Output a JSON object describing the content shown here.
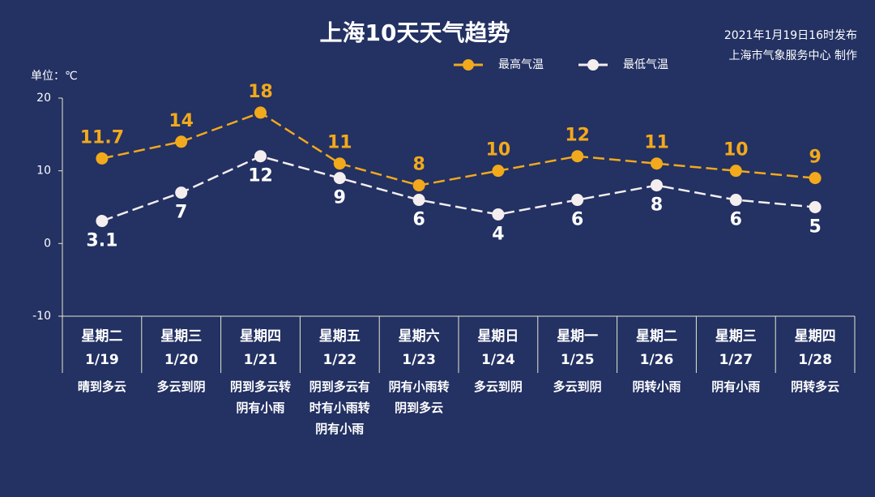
{
  "chart_data": {
    "type": "line",
    "title": "上海10天天气趋势",
    "subtitle": [
      "2021年1月19日16时发布",
      "上海市气象服务中心 制作"
    ],
    "y_label": "单位：℃",
    "categories": [
      "星期二",
      "星期三",
      "星期四",
      "星期五",
      "星期六",
      "星期日",
      "星期一",
      "星期二",
      "星期三",
      "星期四"
    ],
    "dates": [
      "1/19",
      "1/20",
      "1/21",
      "1/22",
      "1/23",
      "1/24",
      "1/25",
      "1/26",
      "1/27",
      "1/28"
    ],
    "weather": [
      "晴到多云",
      "多云到阴",
      "阴到多云转阴有小雨",
      "阴到多云有时有小雨转阴有小雨",
      "阴有小雨转阴到多云",
      "多云到阴",
      "多云到阴",
      "阴转小雨",
      "阴有小雨",
      "阴转多云"
    ],
    "series": [
      {
        "name": "最高气温",
        "color": "#f2a91c",
        "values": [
          11.7,
          14,
          18,
          11,
          8,
          10,
          12,
          11,
          10,
          9
        ]
      },
      {
        "name": "最低气温",
        "color": "#f4eeee",
        "values": [
          3.1,
          7,
          12,
          9,
          6,
          4,
          6,
          8,
          6,
          5
        ]
      }
    ],
    "ylim": [
      -10,
      20
    ],
    "yticks": [
      -10,
      0,
      10,
      20
    ],
    "grid": false,
    "legend": "top-right"
  }
}
